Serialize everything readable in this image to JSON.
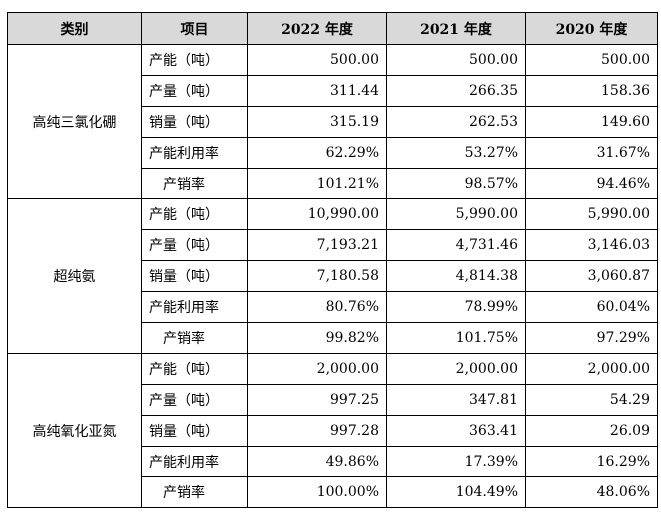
{
  "header": {
    "category": "类别",
    "item": "项目",
    "y2022": "2022 年度",
    "y2021": "2021 年度",
    "y2020": "2020 年度"
  },
  "groups": [
    {
      "name": "高纯三氯化硼",
      "rows": [
        {
          "item": "产能（吨）",
          "y2022": "500.00",
          "y2021": "500.00",
          "y2020": "500.00"
        },
        {
          "item": "产量（吨）",
          "y2022": "311.44",
          "y2021": "266.35",
          "y2020": "158.36"
        },
        {
          "item": "销量（吨）",
          "y2022": "315.19",
          "y2021": "262.53",
          "y2020": "149.60"
        },
        {
          "item": "产能利用率",
          "y2022": "62.29%",
          "y2021": "53.27%",
          "y2020": "31.67%"
        },
        {
          "item": "产销率",
          "y2022": "101.21%",
          "y2021": "98.57%",
          "y2020": "94.46%"
        }
      ]
    },
    {
      "name": "超纯氨",
      "rows": [
        {
          "item": "产能（吨）",
          "y2022": "10,990.00",
          "y2021": "5,990.00",
          "y2020": "5,990.00"
        },
        {
          "item": "产量（吨）",
          "y2022": "7,193.21",
          "y2021": "4,731.46",
          "y2020": "3,146.03"
        },
        {
          "item": "销量（吨）",
          "y2022": "7,180.58",
          "y2021": "4,814.38",
          "y2020": "3,060.87"
        },
        {
          "item": "产能利用率",
          "y2022": "80.76%",
          "y2021": "78.99%",
          "y2020": "60.04%"
        },
        {
          "item": "产销率",
          "y2022": "99.82%",
          "y2021": "101.75%",
          "y2020": "97.29%"
        }
      ]
    },
    {
      "name": "高纯氧化亚氮",
      "rows": [
        {
          "item": "产能（吨）",
          "y2022": "2,000.00",
          "y2021": "2,000.00",
          "y2020": "2,000.00"
        },
        {
          "item": "产量（吨）",
          "y2022": "997.25",
          "y2021": "347.81",
          "y2020": "54.29"
        },
        {
          "item": "销量（吨）",
          "y2022": "997.28",
          "y2021": "363.41",
          "y2020": "26.09"
        },
        {
          "item": "产能利用率",
          "y2022": "49.86%",
          "y2021": "17.39%",
          "y2020": "16.29%"
        },
        {
          "item": "产销率",
          "y2022": "100.00%",
          "y2021": "104.49%",
          "y2020": "48.06%"
        }
      ]
    }
  ]
}
